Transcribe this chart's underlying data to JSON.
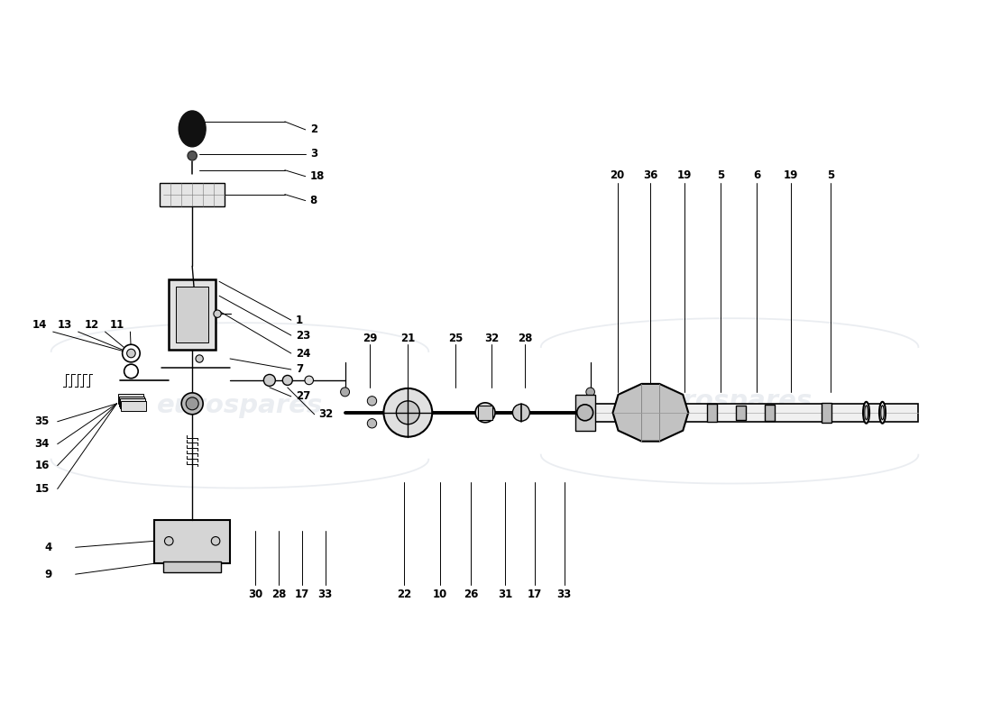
{
  "bg_color": "#ffffff",
  "watermark_color": "#c0c8d4",
  "watermark_alpha": 0.32,
  "fig_width": 11.0,
  "fig_height": 8.0
}
